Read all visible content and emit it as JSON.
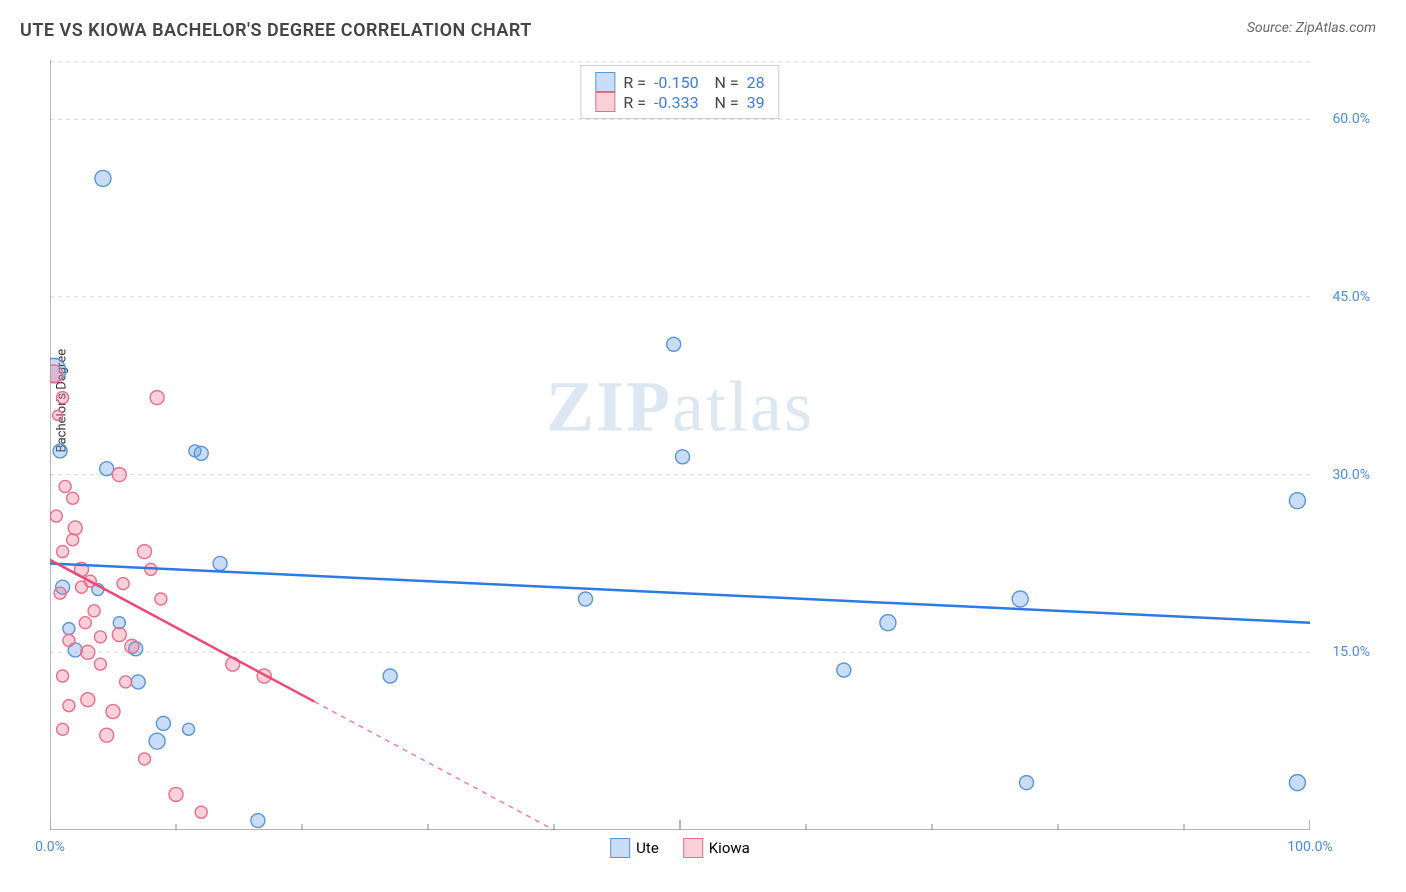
{
  "title": "UTE VS KIOWA BACHELOR'S DEGREE CORRELATION CHART",
  "source": "Source: ZipAtlas.com",
  "watermark": {
    "bold": "ZIP",
    "light": "atlas"
  },
  "chart": {
    "type": "scatter",
    "background_color": "#ffffff",
    "grid_color": "#d8d8d8",
    "axis_color": "#888888",
    "ylabel": "Bachelor's Degree",
    "ylabel_fontsize": 13,
    "xlim": [
      0,
      100
    ],
    "ylim": [
      0,
      65
    ],
    "yticks": [
      {
        "v": 15,
        "label": "15.0%"
      },
      {
        "v": 30,
        "label": "30.0%"
      },
      {
        "v": 45,
        "label": "45.0%"
      },
      {
        "v": 60,
        "label": "60.0%"
      }
    ],
    "xticks_major": [
      0,
      50,
      100
    ],
    "xticks_minor": [
      10,
      20,
      30,
      40,
      60,
      70,
      80,
      90
    ],
    "xtick_labels": [
      {
        "v": 0,
        "label": "0.0%"
      },
      {
        "v": 100,
        "label": "100.0%"
      }
    ],
    "series": [
      {
        "name": "Ute",
        "fill": "rgba(100,160,230,0.35)",
        "stroke": "#5a95d6",
        "trend_color": "#2c7be5",
        "r": -0.15,
        "n": 28,
        "trend": {
          "x1": 0,
          "y1": 22.5,
          "x2": 100,
          "y2": 17.5,
          "solid_until": 100
        },
        "points": [
          {
            "x": 0.3,
            "y": 38.8,
            "r": 12
          },
          {
            "x": 4.2,
            "y": 55.0,
            "r": 8
          },
          {
            "x": 0.8,
            "y": 32.0,
            "r": 7
          },
          {
            "x": 4.5,
            "y": 30.5,
            "r": 7
          },
          {
            "x": 11.5,
            "y": 32.0,
            "r": 6
          },
          {
            "x": 12.0,
            "y": 31.8,
            "r": 7
          },
          {
            "x": 50.2,
            "y": 31.5,
            "r": 7
          },
          {
            "x": 99.0,
            "y": 27.8,
            "r": 8
          },
          {
            "x": 13.5,
            "y": 22.5,
            "r": 7
          },
          {
            "x": 1.0,
            "y": 20.5,
            "r": 7
          },
          {
            "x": 3.8,
            "y": 20.3,
            "r": 6
          },
          {
            "x": 49.5,
            "y": 41.0,
            "r": 7
          },
          {
            "x": 42.5,
            "y": 19.5,
            "r": 7
          },
          {
            "x": 2.0,
            "y": 15.2,
            "r": 7
          },
          {
            "x": 6.8,
            "y": 15.3,
            "r": 7
          },
          {
            "x": 1.5,
            "y": 17.0,
            "r": 6
          },
          {
            "x": 7.0,
            "y": 12.5,
            "r": 7
          },
          {
            "x": 9.0,
            "y": 9.0,
            "r": 7
          },
          {
            "x": 8.5,
            "y": 7.5,
            "r": 8
          },
          {
            "x": 16.5,
            "y": 0.8,
            "r": 7
          },
          {
            "x": 27.0,
            "y": 13.0,
            "r": 7
          },
          {
            "x": 66.5,
            "y": 17.5,
            "r": 8
          },
          {
            "x": 77.5,
            "y": 4.0,
            "r": 7
          },
          {
            "x": 99.0,
            "y": 4.0,
            "r": 8
          },
          {
            "x": 63.0,
            "y": 13.5,
            "r": 7
          },
          {
            "x": 77.0,
            "y": 19.5,
            "r": 8
          },
          {
            "x": 5.5,
            "y": 17.5,
            "r": 6
          },
          {
            "x": 11.0,
            "y": 8.5,
            "r": 6
          }
        ]
      },
      {
        "name": "Kiowa",
        "fill": "rgba(240,120,150,0.35)",
        "stroke": "#e66f8f",
        "trend_color": "#e84a7a",
        "r": -0.333,
        "n": 39,
        "trend": {
          "x1": 0,
          "y1": 22.8,
          "x2": 40,
          "y2": 0,
          "solid_until": 21
        },
        "points": [
          {
            "x": 0.3,
            "y": 38.5,
            "r": 9
          },
          {
            "x": 1.0,
            "y": 36.5,
            "r": 6
          },
          {
            "x": 8.5,
            "y": 36.5,
            "r": 7
          },
          {
            "x": 1.2,
            "y": 29.0,
            "r": 6
          },
          {
            "x": 1.8,
            "y": 28.0,
            "r": 6
          },
          {
            "x": 5.5,
            "y": 30.0,
            "r": 7
          },
          {
            "x": 2.0,
            "y": 25.5,
            "r": 7
          },
          {
            "x": 1.0,
            "y": 23.5,
            "r": 6
          },
          {
            "x": 2.5,
            "y": 22.0,
            "r": 7
          },
          {
            "x": 7.5,
            "y": 23.5,
            "r": 7
          },
          {
            "x": 8.0,
            "y": 22.0,
            "r": 6
          },
          {
            "x": 0.8,
            "y": 20.0,
            "r": 6
          },
          {
            "x": 3.5,
            "y": 18.5,
            "r": 6
          },
          {
            "x": 5.5,
            "y": 16.5,
            "r": 7
          },
          {
            "x": 6.5,
            "y": 15.5,
            "r": 7
          },
          {
            "x": 3.0,
            "y": 15.0,
            "r": 7
          },
          {
            "x": 1.5,
            "y": 16.0,
            "r": 6
          },
          {
            "x": 4.0,
            "y": 16.3,
            "r": 6
          },
          {
            "x": 1.0,
            "y": 13.0,
            "r": 6
          },
          {
            "x": 3.0,
            "y": 11.0,
            "r": 7
          },
          {
            "x": 5.0,
            "y": 10.0,
            "r": 7
          },
          {
            "x": 1.5,
            "y": 10.5,
            "r": 6
          },
          {
            "x": 4.5,
            "y": 8.0,
            "r": 7
          },
          {
            "x": 7.5,
            "y": 6.0,
            "r": 6
          },
          {
            "x": 10.0,
            "y": 3.0,
            "r": 7
          },
          {
            "x": 12.0,
            "y": 1.5,
            "r": 6
          },
          {
            "x": 14.5,
            "y": 14.0,
            "r": 7
          },
          {
            "x": 17.0,
            "y": 13.0,
            "r": 7
          },
          {
            "x": 2.5,
            "y": 20.5,
            "r": 6
          },
          {
            "x": 4.0,
            "y": 14.0,
            "r": 6
          },
          {
            "x": 6.0,
            "y": 12.5,
            "r": 6
          },
          {
            "x": 0.5,
            "y": 26.5,
            "r": 6
          },
          {
            "x": 1.8,
            "y": 24.5,
            "r": 6
          },
          {
            "x": 3.2,
            "y": 21.0,
            "r": 6
          },
          {
            "x": 0.6,
            "y": 35.0,
            "r": 5
          },
          {
            "x": 2.8,
            "y": 17.5,
            "r": 6
          },
          {
            "x": 8.8,
            "y": 19.5,
            "r": 6
          },
          {
            "x": 1.0,
            "y": 8.5,
            "r": 6
          },
          {
            "x": 5.8,
            "y": 20.8,
            "r": 6
          }
        ]
      }
    ]
  }
}
